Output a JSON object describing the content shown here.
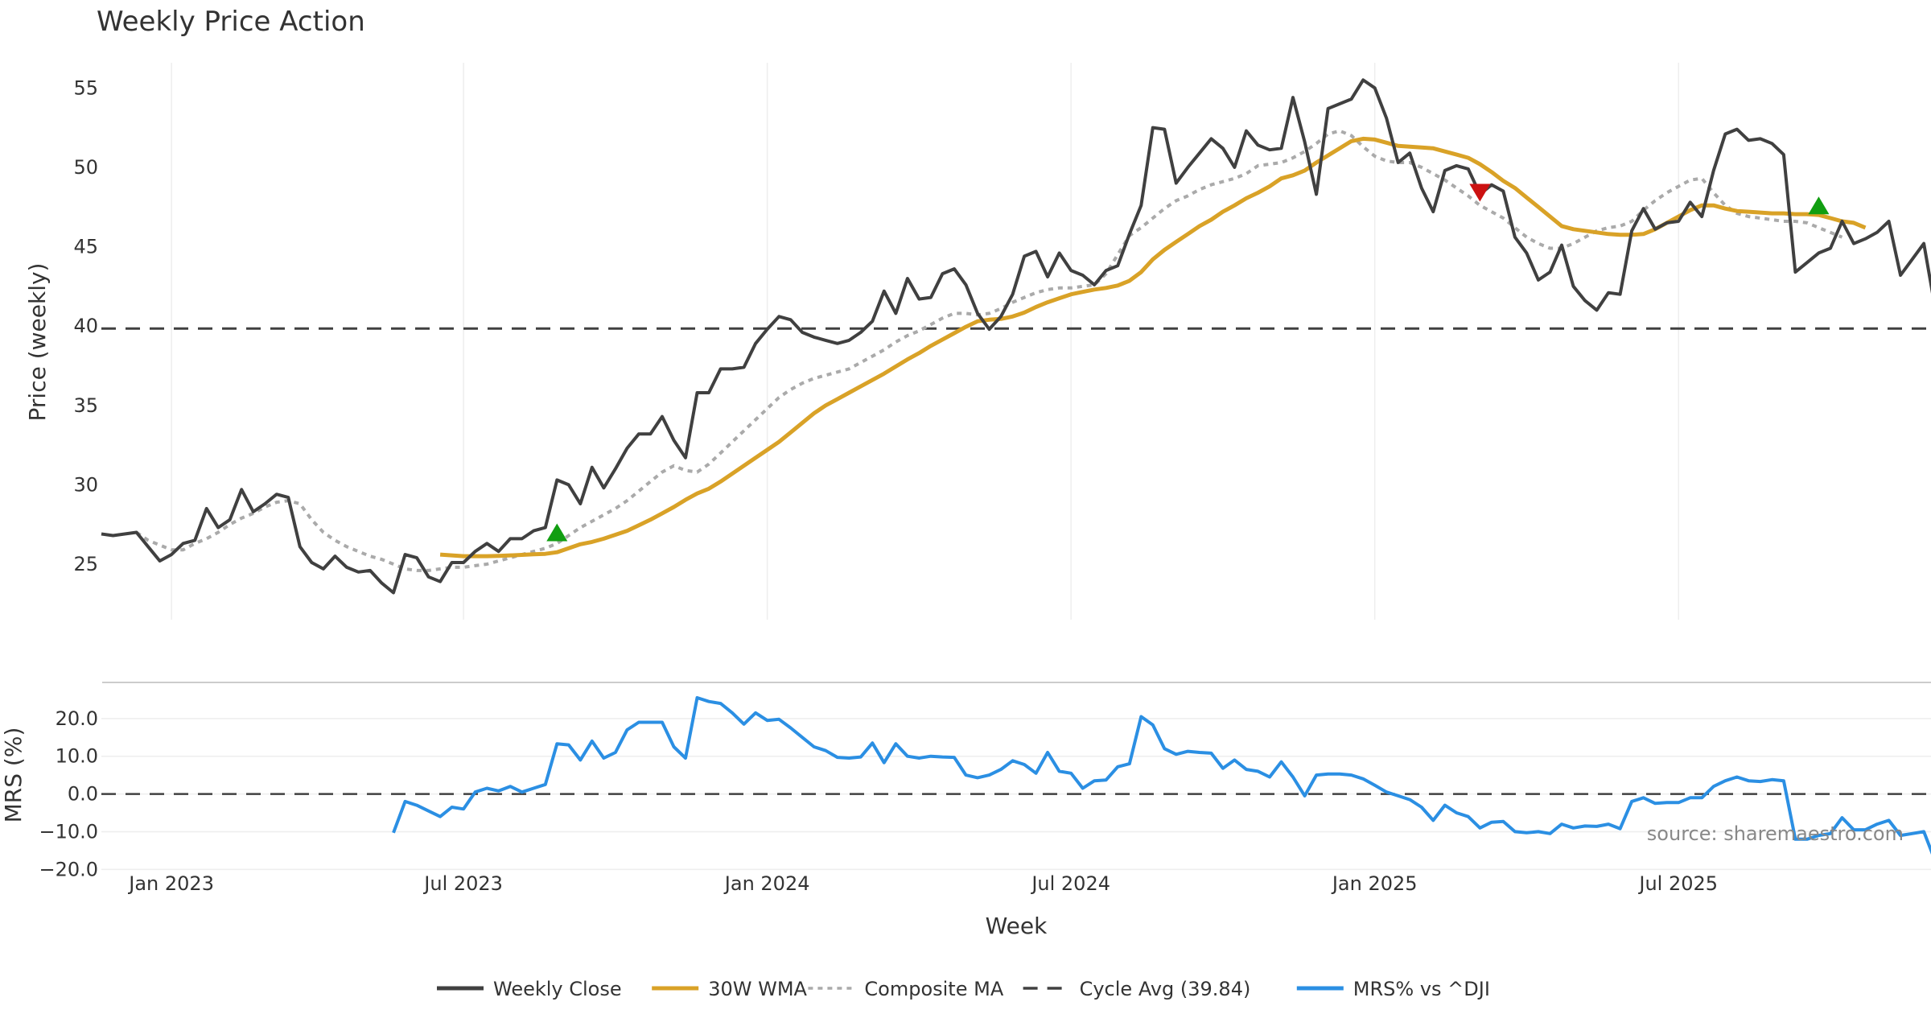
{
  "chart_data": [
    {
      "type": "line",
      "title": "Weekly Price Action",
      "xlabel": "",
      "ylabel": "Price (weekly)",
      "ylim": [
        21.5,
        57.5
      ],
      "yticks": [
        25,
        30,
        35,
        40,
        45,
        50,
        55
      ],
      "xticks": [
        "Jan 2023",
        "Jul 2023",
        "Jan 2024",
        "Jul 2024",
        "Jan 2025",
        "Jul 2025"
      ],
      "grid": true,
      "series": [
        {
          "name": "Weekly Close",
          "color": "#404040",
          "style": "solid",
          "values": [
            26.9,
            26.8,
            26.9,
            27.0,
            26.1,
            25.2,
            25.6,
            26.3,
            26.5,
            28.5,
            27.3,
            27.8,
            29.7,
            28.3,
            28.8,
            29.4,
            29.2,
            26.1,
            25.1,
            24.7,
            25.5,
            24.8,
            24.5,
            24.6,
            23.8,
            23.2,
            25.6,
            25.4,
            24.2,
            23.9,
            25.1,
            25.1,
            25.8,
            26.3,
            25.8,
            26.6,
            26.6,
            27.1,
            27.3,
            30.3,
            30.0,
            28.8,
            31.1,
            29.8,
            31.0,
            32.3,
            33.2,
            33.2,
            34.3,
            32.8,
            31.7,
            35.8,
            35.8,
            37.3,
            37.3,
            37.4,
            38.9,
            39.8,
            40.6,
            40.4,
            39.6,
            39.3,
            39.1,
            38.9,
            39.1,
            39.6,
            40.3,
            42.2,
            40.8,
            43.0,
            41.7,
            41.8,
            43.3,
            43.6,
            42.6,
            40.8,
            39.8,
            40.6,
            42.0,
            44.4,
            44.7,
            43.1,
            44.6,
            43.5,
            43.2,
            42.6,
            43.5,
            43.8,
            45.8,
            47.6,
            52.5,
            52.4,
            49.0,
            50.0,
            50.9,
            51.8,
            51.2,
            50.0,
            52.3,
            51.4,
            51.1,
            51.2,
            54.4,
            51.6,
            48.3,
            53.7,
            54.0,
            54.3,
            55.5,
            55.0,
            53.1,
            50.3,
            50.9,
            48.7,
            47.2,
            49.8,
            50.1,
            49.9,
            48.3,
            48.9,
            48.5,
            45.6,
            44.6,
            42.9,
            43.4,
            45.1,
            42.5,
            41.6,
            41.0,
            42.1,
            42.0,
            46.0,
            47.4,
            46.1,
            46.5,
            46.6,
            47.8,
            46.9,
            49.8,
            52.1,
            52.4,
            51.7,
            51.8,
            51.5,
            50.8,
            43.4,
            44.0,
            44.6,
            44.9,
            46.6,
            45.2,
            45.5,
            45.9,
            46.6,
            43.2,
            44.2,
            45.2,
            41.0
          ]
        },
        {
          "name": "30W WMA",
          "color": "#d9a227",
          "style": "solid",
          "start": 29,
          "values": [
            25.6,
            25.55,
            25.5,
            25.5,
            25.5,
            25.52,
            25.55,
            25.58,
            25.62,
            25.65,
            25.75,
            26.0,
            26.25,
            26.4,
            26.6,
            26.85,
            27.1,
            27.45,
            27.8,
            28.2,
            28.6,
            29.05,
            29.45,
            29.75,
            30.2,
            30.7,
            31.2,
            31.7,
            32.2,
            32.7,
            33.3,
            33.9,
            34.5,
            35.0,
            35.4,
            35.8,
            36.2,
            36.6,
            37.0,
            37.45,
            37.9,
            38.3,
            38.75,
            39.15,
            39.55,
            39.95,
            40.3,
            40.4,
            40.45,
            40.6,
            40.85,
            41.2,
            41.5,
            41.75,
            42.0,
            42.15,
            42.3,
            42.4,
            42.55,
            42.85,
            43.4,
            44.2,
            44.8,
            45.3,
            45.8,
            46.3,
            46.7,
            47.2,
            47.6,
            48.05,
            48.4,
            48.8,
            49.3,
            49.5,
            49.8,
            50.3,
            50.75,
            51.2,
            51.65,
            51.8,
            51.75,
            51.55,
            51.35,
            51.3,
            51.25,
            51.2,
            51.0,
            50.8,
            50.6,
            50.2,
            49.7,
            49.15,
            48.7,
            48.1,
            47.5,
            46.9,
            46.3,
            46.1,
            46.0,
            45.9,
            45.8,
            45.75,
            45.75,
            45.8,
            46.1,
            46.5,
            46.9,
            47.3,
            47.6,
            47.6,
            47.4,
            47.25,
            47.2,
            47.15,
            47.1,
            47.1,
            47.05,
            47.05,
            47.0,
            46.8,
            46.6,
            46.5,
            46.2
          ]
        },
        {
          "name": "Composite MA",
          "color": "#aaaaaa",
          "style": "dotted",
          "start": 3,
          "values": [
            27.0,
            26.5,
            26.2,
            25.9,
            25.9,
            26.3,
            26.6,
            27.0,
            27.5,
            27.9,
            28.2,
            28.6,
            28.9,
            29.0,
            28.8,
            27.8,
            27.0,
            26.5,
            26.1,
            25.8,
            25.5,
            25.3,
            25.0,
            24.7,
            24.6,
            24.6,
            24.7,
            24.8,
            24.8,
            24.9,
            25.0,
            25.2,
            25.4,
            25.6,
            25.8,
            26.0,
            26.3,
            26.8,
            27.3,
            27.7,
            28.1,
            28.5,
            29.0,
            29.6,
            30.2,
            30.8,
            31.2,
            30.9,
            30.8,
            31.3,
            32.0,
            32.7,
            33.4,
            34.1,
            34.8,
            35.5,
            36.0,
            36.4,
            36.7,
            36.9,
            37.1,
            37.3,
            37.7,
            38.1,
            38.5,
            39.0,
            39.4,
            39.7,
            40.1,
            40.5,
            40.8,
            40.8,
            40.7,
            40.8,
            41.1,
            41.5,
            41.8,
            42.1,
            42.3,
            42.4,
            42.4,
            42.5,
            42.6,
            43.3,
            44.5,
            45.7,
            46.2,
            46.8,
            47.4,
            47.9,
            48.2,
            48.6,
            48.9,
            49.1,
            49.3,
            49.6,
            50.1,
            50.2,
            50.3,
            50.6,
            51.0,
            51.5,
            52.1,
            52.3,
            52.0,
            51.3,
            50.7,
            50.4,
            50.3,
            50.3,
            50.0,
            49.6,
            49.2,
            48.7,
            48.2,
            47.6,
            47.2,
            46.8,
            46.2,
            45.6,
            45.2,
            44.9,
            44.9,
            45.2,
            45.6,
            46.0,
            46.2,
            46.3,
            46.6,
            47.3,
            47.9,
            48.4,
            48.8,
            49.2,
            49.3,
            48.4,
            47.6,
            47.1,
            46.9,
            46.8,
            46.7,
            46.6,
            46.6,
            46.5,
            46.2,
            45.9,
            45.6
          ]
        },
        {
          "name": "Cycle Avg (39.84)",
          "color": "#404040",
          "style": "dashed",
          "value": 39.84
        }
      ],
      "markers": [
        {
          "type": "buy",
          "week": 39,
          "value": 27.0,
          "color": "#119e11"
        },
        {
          "type": "sell",
          "week": 118,
          "value": 48.4,
          "color": "#cc1111"
        },
        {
          "type": "buy",
          "week": 147,
          "value": 47.6,
          "color": "#119e11"
        }
      ]
    },
    {
      "type": "line",
      "title": "",
      "xlabel": "Week",
      "ylabel": "MRS (%)",
      "ylim": [
        -21,
        27
      ],
      "yticks": [
        "20.0",
        "10.0",
        "0.0",
        "−10.0",
        "−20.0"
      ],
      "xticks": [
        "Jan 2023",
        "Jul 2023",
        "Jan 2024",
        "Jul 2024",
        "Jan 2025",
        "Jul 2025"
      ],
      "series": [
        {
          "name": "MRS% vs ^DJI",
          "color": "#2b8fe3",
          "style": "solid",
          "start": 25,
          "values": [
            -10.3,
            -2.0,
            -3.0,
            -4.5,
            -6.0,
            -3.5,
            -4.0,
            0.5,
            1.5,
            0.8,
            2.0,
            0.5,
            1.5,
            2.5,
            13.3,
            13.0,
            9.0,
            14.0,
            9.5,
            11.0,
            17.0,
            19.0,
            19.0,
            19.0,
            12.5,
            9.5,
            25.5,
            24.5,
            24.0,
            21.5,
            18.5,
            21.5,
            19.5,
            19.8,
            17.5,
            15.0,
            12.5,
            11.5,
            9.7,
            9.5,
            9.8,
            13.5,
            8.3,
            13.3,
            10.0,
            9.5,
            10.0,
            9.8,
            9.7,
            5.0,
            4.3,
            5.0,
            6.5,
            8.8,
            7.8,
            5.5,
            11.0,
            6.0,
            5.5,
            1.5,
            3.5,
            3.7,
            7.2,
            8.0,
            20.5,
            18.3,
            12.0,
            10.5,
            11.3,
            11.0,
            10.8,
            6.8,
            9.0,
            6.5,
            6.0,
            4.5,
            8.5,
            4.5,
            -0.5,
            5.0,
            5.3,
            5.3,
            5.0,
            4.0,
            2.3,
            0.5,
            -0.5,
            -1.5,
            -3.5,
            -7.0,
            -3.0,
            -5.0,
            -6.0,
            -9.0,
            -7.5,
            -7.3,
            -10.0,
            -10.3,
            -10.0,
            -10.5,
            -8.0,
            -9.0,
            -8.5,
            -8.6,
            -8.0,
            -9.2,
            -2.0,
            -1.0,
            -2.5,
            -2.3,
            -2.3,
            -1.0,
            -1.0,
            2.0,
            3.5,
            4.5,
            3.5,
            3.3,
            3.8,
            3.5,
            -12.0,
            -12.0,
            -11.0,
            -10.5,
            -6.3,
            -9.5,
            -9.5,
            -8.0,
            -7.0,
            -11.0,
            -10.5,
            -10.0,
            -18.0
          ]
        },
        {
          "name": "",
          "color": "#404040",
          "style": "dashed",
          "value": 0
        }
      ],
      "annotation": "source: sharemaestro.com"
    }
  ],
  "legend": {
    "placement": "bottom-center",
    "items": [
      {
        "label": "Weekly Close",
        "color": "#404040",
        "style": "solid"
      },
      {
        "label": "30W WMA",
        "color": "#d9a227",
        "style": "solid"
      },
      {
        "label": "Composite MA",
        "color": "#aaaaaa",
        "style": "dotted"
      },
      {
        "label": "Cycle Avg (39.84)",
        "color": "#404040",
        "style": "dashed"
      },
      {
        "label": "MRS% vs ^DJI",
        "color": "#2b8fe3",
        "style": "solid"
      }
    ]
  }
}
